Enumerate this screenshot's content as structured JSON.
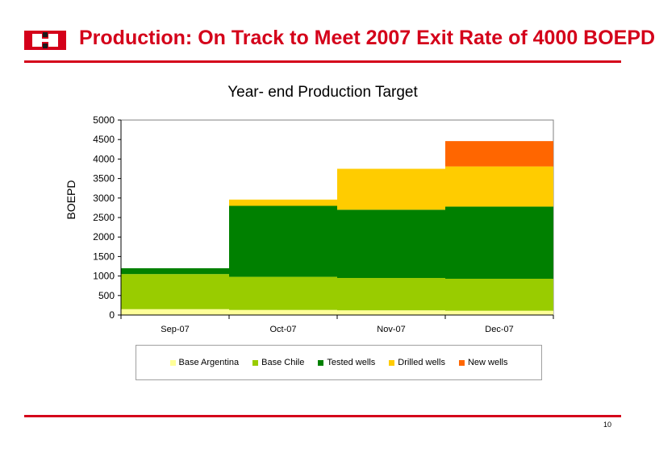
{
  "slide": {
    "title": "Production: On Track to Meet 2007 Exit Rate of 4000 BOEPD",
    "page_number": "10",
    "brand_color": "#d4001a",
    "logo_icon": "company-logo-icon"
  },
  "chart_data": {
    "type": "bar",
    "stacked": true,
    "title": "Year- end Production Target",
    "xlabel": "",
    "ylabel": "BOEPD",
    "ylim": [
      0,
      5000
    ],
    "yticks": [
      0,
      500,
      1000,
      1500,
      2000,
      2500,
      3000,
      3500,
      4000,
      4500,
      5000
    ],
    "categories": [
      "Sep-07",
      "Oct-07",
      "Nov-07",
      "Dec-07"
    ],
    "series": [
      {
        "name": "Base Argentina",
        "color": "#ffff99",
        "values": [
          150,
          130,
          120,
          110
        ]
      },
      {
        "name": "Base Chile",
        "color": "#99cc00",
        "values": [
          900,
          850,
          830,
          820
        ]
      },
      {
        "name": "Tested wells",
        "color": "#008000",
        "values": [
          150,
          1820,
          1750,
          1850
        ]
      },
      {
        "name": "Drilled wells",
        "color": "#ffcc00",
        "values": [
          0,
          160,
          1050,
          1030
        ]
      },
      {
        "name": "New wells",
        "color": "#ff6600",
        "values": [
          0,
          0,
          0,
          650
        ]
      }
    ],
    "grid": false,
    "legend_position": "bottom"
  }
}
